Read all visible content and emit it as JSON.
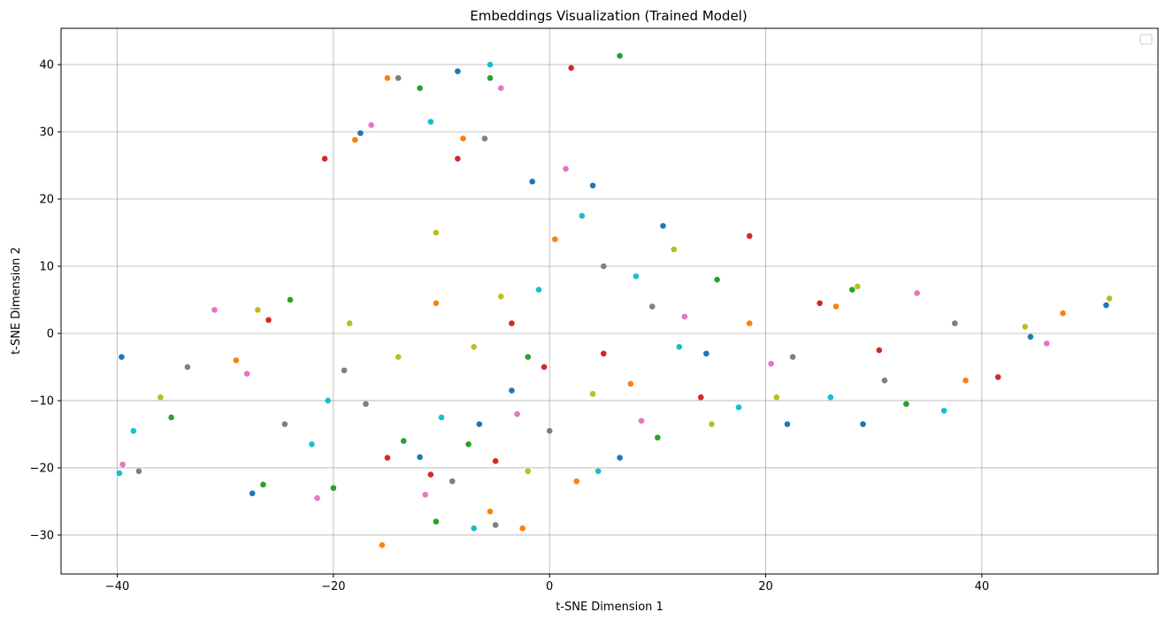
{
  "chart_data": {
    "type": "scatter",
    "title": "Embeddings Visualization (Trained Model)",
    "xlabel": "t-SNE Dimension 1",
    "ylabel": "t-SNE Dimension 2",
    "xlim": [
      -45.2,
      56.3
    ],
    "ylim": [
      -35.8,
      45.4
    ],
    "xticks": [
      -40,
      -20,
      0,
      20,
      40
    ],
    "yticks": [
      -30,
      -20,
      -10,
      0,
      10,
      20,
      30,
      40
    ],
    "xtick_labels": [
      "−40",
      "−20",
      "0",
      "20",
      "40"
    ],
    "ytick_labels": [
      "−30",
      "−20",
      "−10",
      "0",
      "10",
      "20",
      "30",
      "40"
    ],
    "grid": true,
    "legend": {
      "placement": "top-right",
      "entries": []
    },
    "colors": [
      "#1f77b4",
      "#ff7f0e",
      "#2ca02c",
      "#d62728",
      "#e377c2",
      "#7f7f7f",
      "#bcbd22",
      "#17becf"
    ],
    "series": [
      {
        "color": "#1f77b4",
        "points": [
          [
            -39.6,
            -3.5
          ],
          [
            -27.5,
            -23.8
          ],
          [
            -12.0,
            -18.4
          ],
          [
            -6.5,
            -13.5
          ],
          [
            -1.6,
            22.6
          ],
          [
            4.0,
            22.0
          ],
          [
            10.5,
            16.0
          ],
          [
            22.0,
            -13.5
          ],
          [
            29.0,
            -13.5
          ],
          [
            44.5,
            -0.5
          ],
          [
            51.5,
            4.2
          ],
          [
            -17.5,
            29.8
          ],
          [
            -8.5,
            39.0
          ],
          [
            -3.5,
            -8.5
          ],
          [
            14.5,
            -3.0
          ],
          [
            6.5,
            -18.5
          ]
        ]
      },
      {
        "color": "#ff7f0e",
        "points": [
          [
            -15.5,
            -31.5
          ],
          [
            -5.5,
            -26.5
          ],
          [
            -2.5,
            -29.0
          ],
          [
            2.5,
            -22.0
          ],
          [
            -18.0,
            28.8
          ],
          [
            -15.0,
            38.0
          ],
          [
            -8.0,
            29.0
          ],
          [
            7.5,
            -7.5
          ],
          [
            18.5,
            1.5
          ],
          [
            26.5,
            4.0
          ],
          [
            38.5,
            -7.0
          ],
          [
            -29.0,
            -4.0
          ],
          [
            -10.5,
            4.5
          ],
          [
            0.5,
            14.0
          ],
          [
            47.5,
            3.0
          ]
        ]
      },
      {
        "color": "#2ca02c",
        "points": [
          [
            -35.0,
            -12.5
          ],
          [
            -26.5,
            -22.5
          ],
          [
            -20.0,
            -23.0
          ],
          [
            -13.5,
            -16.0
          ],
          [
            -7.5,
            -16.5
          ],
          [
            -10.5,
            -28.0
          ],
          [
            6.5,
            41.3
          ],
          [
            -12.0,
            36.5
          ],
          [
            -5.5,
            38.0
          ],
          [
            15.5,
            8.0
          ],
          [
            28.0,
            6.5
          ],
          [
            10.0,
            -15.5
          ],
          [
            -24.0,
            5.0
          ],
          [
            -2.0,
            -3.5
          ],
          [
            33.0,
            -10.5
          ]
        ]
      },
      {
        "color": "#d62728",
        "points": [
          [
            -15.0,
            -18.5
          ],
          [
            -5.0,
            -19.0
          ],
          [
            -0.5,
            -5.0
          ],
          [
            2.0,
            39.5
          ],
          [
            -8.5,
            26.0
          ],
          [
            -20.8,
            26.0
          ],
          [
            18.5,
            14.5
          ],
          [
            25.0,
            4.5
          ],
          [
            41.5,
            -6.5
          ],
          [
            -26.0,
            2.0
          ],
          [
            -11.0,
            -21.0
          ],
          [
            5.0,
            -3.0
          ],
          [
            14.0,
            -9.5
          ],
          [
            30.5,
            -2.5
          ],
          [
            -3.5,
            1.5
          ]
        ]
      },
      {
        "color": "#e377c2",
        "points": [
          [
            -39.5,
            -19.5
          ],
          [
            -28.0,
            -6.0
          ],
          [
            -21.5,
            -24.5
          ],
          [
            -4.5,
            36.5
          ],
          [
            1.5,
            24.5
          ],
          [
            -16.5,
            31.0
          ],
          [
            8.5,
            -13.0
          ],
          [
            20.5,
            -4.5
          ],
          [
            34.0,
            6.0
          ],
          [
            -11.5,
            -24.0
          ],
          [
            -3.0,
            -12.0
          ],
          [
            46.0,
            -1.5
          ],
          [
            -31.0,
            3.5
          ],
          [
            12.5,
            2.5
          ]
        ]
      },
      {
        "color": "#7f7f7f",
        "points": [
          [
            -38.0,
            -20.5
          ],
          [
            -17.0,
            -10.5
          ],
          [
            -9.0,
            -22.0
          ],
          [
            -5.0,
            -28.5
          ],
          [
            -6.0,
            29.0
          ],
          [
            -14.0,
            38.0
          ],
          [
            5.0,
            10.0
          ],
          [
            22.5,
            -3.5
          ],
          [
            31.0,
            -7.0
          ],
          [
            37.5,
            1.5
          ],
          [
            -33.5,
            -5.0
          ],
          [
            -19.0,
            -5.5
          ],
          [
            0.0,
            -14.5
          ],
          [
            9.5,
            4.0
          ],
          [
            -24.5,
            -13.5
          ]
        ]
      },
      {
        "color": "#bcbd22",
        "points": [
          [
            -27.0,
            3.5
          ],
          [
            -14.0,
            -3.5
          ],
          [
            -2.0,
            -20.5
          ],
          [
            -10.5,
            15.0
          ],
          [
            -4.5,
            5.5
          ],
          [
            4.0,
            -9.0
          ],
          [
            11.5,
            12.5
          ],
          [
            21.0,
            -9.5
          ],
          [
            28.5,
            7.0
          ],
          [
            44.0,
            1.0
          ],
          [
            51.8,
            5.2
          ],
          [
            -36.0,
            -9.5
          ],
          [
            -18.5,
            1.5
          ],
          [
            -7.0,
            -2.0
          ],
          [
            15.0,
            -13.5
          ]
        ]
      },
      {
        "color": "#17becf",
        "points": [
          [
            -39.8,
            -20.8
          ],
          [
            -38.5,
            -14.5
          ],
          [
            -22.0,
            -16.5
          ],
          [
            -10.0,
            -12.5
          ],
          [
            -7.0,
            -29.0
          ],
          [
            4.5,
            -20.5
          ],
          [
            -5.5,
            40.0
          ],
          [
            -11.0,
            31.5
          ],
          [
            3.0,
            17.5
          ],
          [
            12.0,
            -2.0
          ],
          [
            26.0,
            -9.5
          ],
          [
            36.5,
            -11.5
          ],
          [
            -20.5,
            -10.0
          ],
          [
            8.0,
            8.5
          ],
          [
            -1.0,
            6.5
          ],
          [
            17.5,
            -11.0
          ]
        ]
      }
    ]
  }
}
